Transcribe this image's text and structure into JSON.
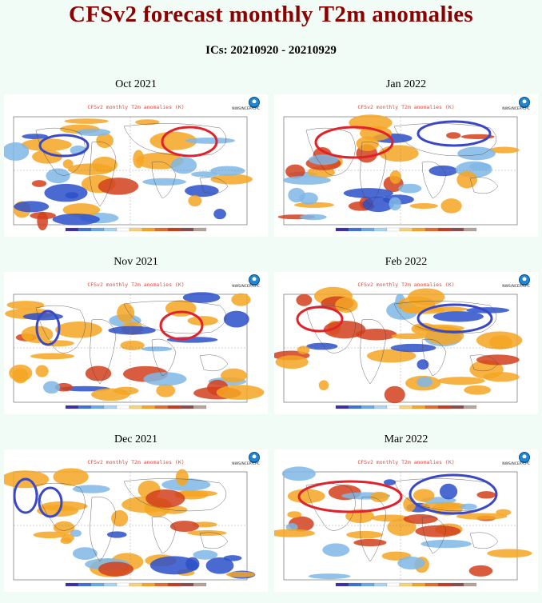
{
  "header": {
    "title": "CFSv2 forecast monthly T2m anomalies",
    "subtitle": "ICs: 20210920 - 20210929"
  },
  "panels": [
    {
      "month": "Oct 2021",
      "corner": "Oct 2021",
      "inner_title": "CFSv2 monthly T2m anomalies (K)",
      "agency": "NWS/NCEP/CPC"
    },
    {
      "month": "Jan 2022",
      "corner": "Jan 2022",
      "inner_title": "CFSv2 monthly T2m anomalies (K)",
      "agency": "NWS/NCEP/CPC"
    },
    {
      "month": "Nov 2021",
      "corner": "Nov 2021",
      "inner_title": "CFSv2 monthly T2m anomalies (K)",
      "agency": "NWS/NCEP/CPC"
    },
    {
      "month": "Feb 2022",
      "corner": "Feb 2022",
      "inner_title": "CFSv2 monthly T2m anomalies (K)",
      "agency": "NWS/NCEP/CPC"
    },
    {
      "month": "Dec 2021",
      "corner": "Dec 2021",
      "inner_title": "CFSv2 monthly T2m anomalies (K)",
      "agency": "NWS/NCEP/CPC"
    },
    {
      "month": "Mar 2022",
      "corner": "Mar 2022",
      "inner_title": "CFSv2 monthly T2m anomalies (K)",
      "agency": "NWS/NCEP/CPC"
    }
  ],
  "colors": {
    "title": "#8b0000",
    "warm_light": "#f5a623",
    "warm_dark": "#d2401c",
    "cool_light": "#7fb7e6",
    "cool_dark": "#2b50c9",
    "highlight_warm": "#e0232b",
    "highlight_cool": "#3a48c6"
  }
}
